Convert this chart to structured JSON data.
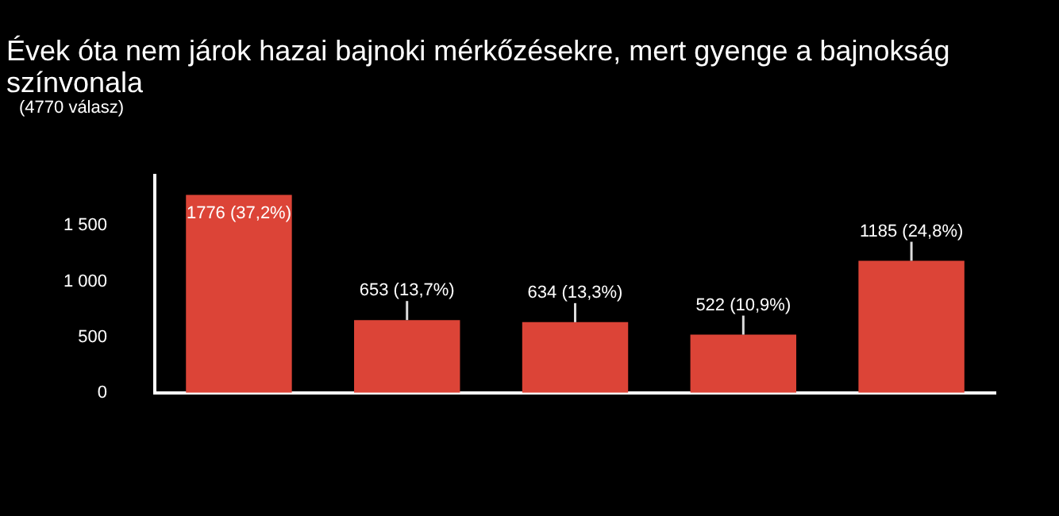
{
  "chart_data": {
    "type": "bar",
    "title": "Évek óta nem járok hazai bajnoki mérkőzésekre, mert gyenge a bajnokság színvonala",
    "subtitle": "(4770 válasz)",
    "categories": [
      null,
      null,
      null,
      null,
      null
    ],
    "values": [
      1776,
      653,
      634,
      522,
      1185
    ],
    "value_labels": [
      "1776 (37,2%)",
      "653 (13,7%)",
      "634 (13,3%)",
      "522 (10,9%)",
      "1185 (24,8%)"
    ],
    "color": "#dc4437",
    "ylim": [
      0,
      1950
    ],
    "yticks": [
      0,
      500,
      {
        "value": 1000,
        "label": "1 000"
      },
      {
        "value": 1500,
        "label": "1 500"
      }
    ],
    "grid": false,
    "legend": false
  }
}
